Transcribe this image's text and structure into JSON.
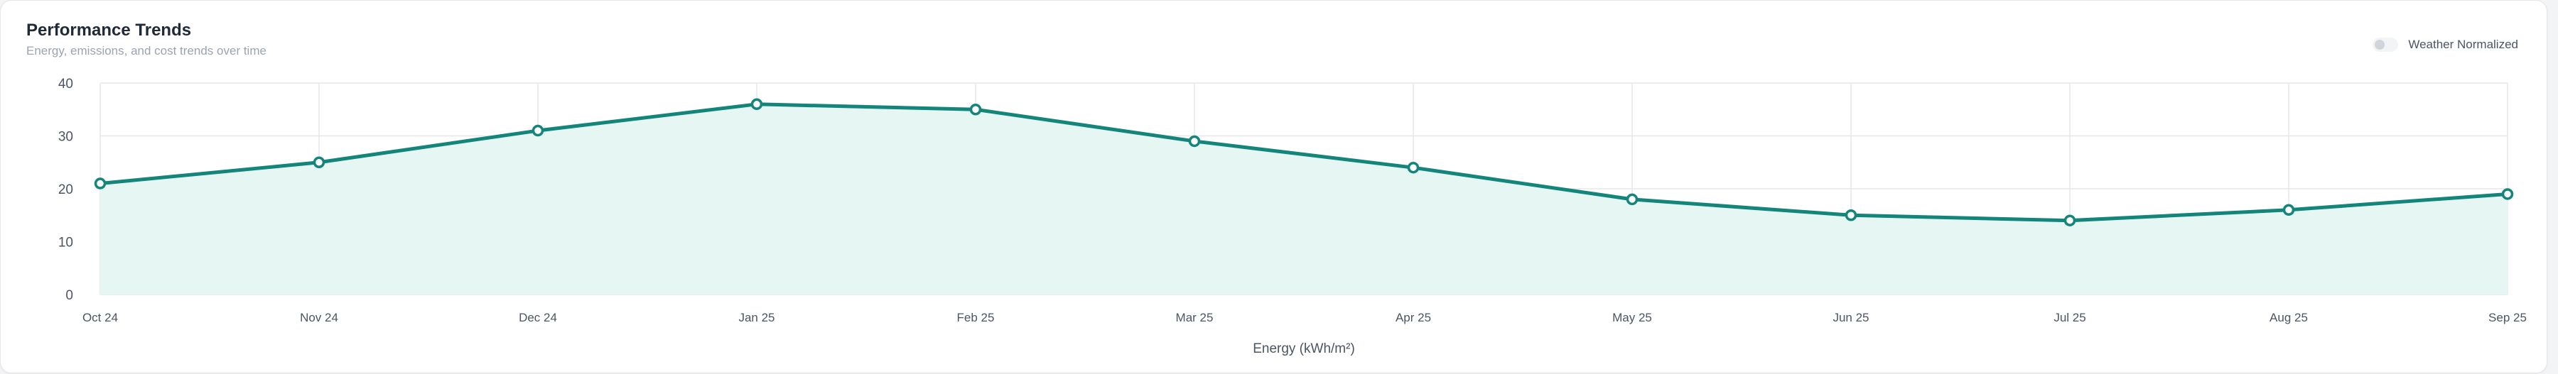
{
  "header": {
    "title": "Performance Trends",
    "subtitle": "Energy, emissions, and cost trends over time"
  },
  "toggle": {
    "label": "Weather Normalized",
    "checked": false
  },
  "colors": {
    "line": "#14857b",
    "fill": "#e6f6f3",
    "grid": "#e5e7eb"
  },
  "chart_data": {
    "type": "area",
    "categories": [
      "Oct 24",
      "Nov 24",
      "Dec 24",
      "Jan 25",
      "Feb 25",
      "Mar 25",
      "Apr 25",
      "May 25",
      "Jun 25",
      "Jul 25",
      "Aug 25",
      "Sep 25"
    ],
    "series": [
      {
        "values": [
          21,
          25,
          31,
          36,
          35,
          29,
          24,
          18,
          15,
          14,
          16,
          19
        ]
      }
    ],
    "xlabel": "Energy (kWh/m²)",
    "ylabel": "",
    "ylim": [
      0,
      40
    ],
    "yticks": [
      0,
      10,
      20,
      30,
      40
    ],
    "grid": true
  }
}
